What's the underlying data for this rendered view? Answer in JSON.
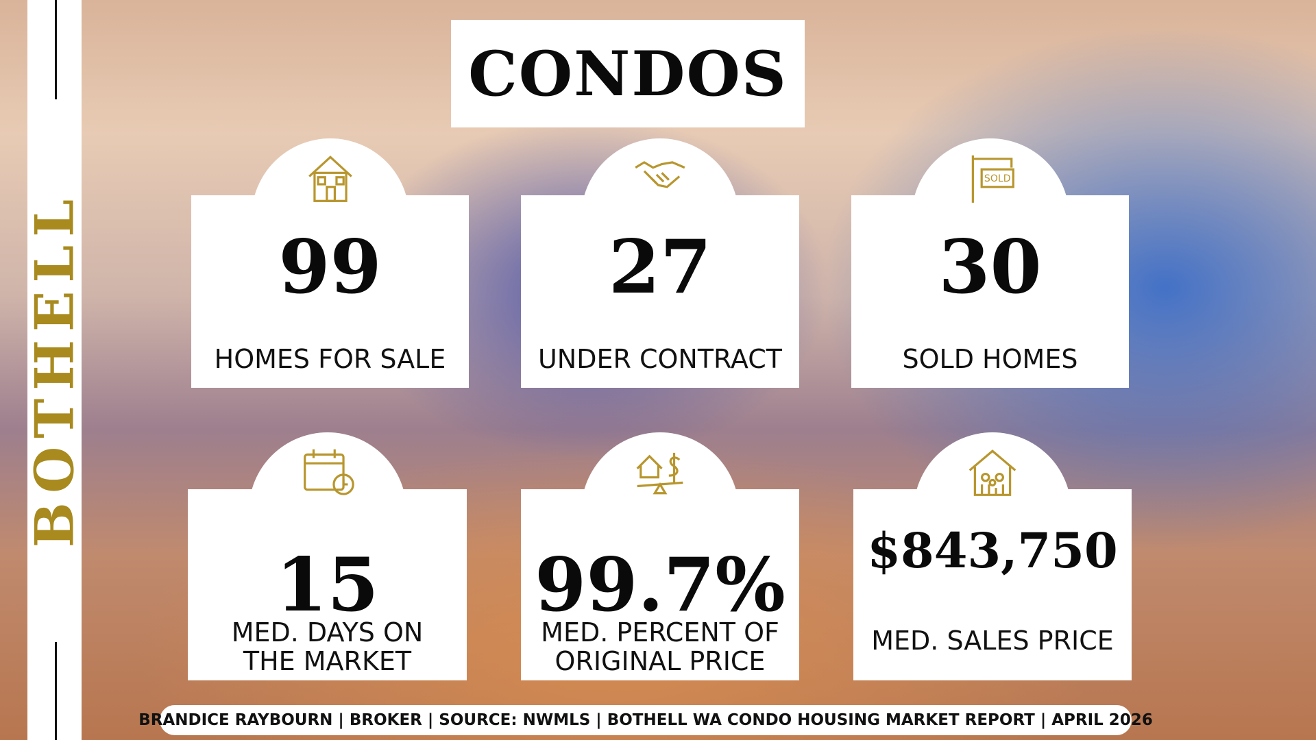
{
  "header": {
    "title": "CONDOS"
  },
  "side_label": "BOTHELL",
  "cards": [
    {
      "value": "99",
      "label_lines": [
        "HOMES FOR SALE"
      ]
    },
    {
      "value": "27",
      "label_lines": [
        "UNDER CONTRACT"
      ]
    },
    {
      "value": "30",
      "label_lines": [
        "SOLD HOMES"
      ]
    },
    {
      "value": "15",
      "label_lines": [
        "MED. DAYS ON",
        "THE MARKET"
      ]
    },
    {
      "value": "99.7%",
      "label_lines": [
        "MED. PERCENT OF",
        "ORIGINAL PRICE"
      ]
    },
    {
      "value": "$843,750",
      "label_lines": [
        "MED. SALES PRICE"
      ]
    }
  ],
  "footer": "BRANDICE RAYBOURN | BROKER | SOURCE: NWMLS | BOTHELL WA CONDO HOUSING MARKET REPORT | APRIL 2026"
}
